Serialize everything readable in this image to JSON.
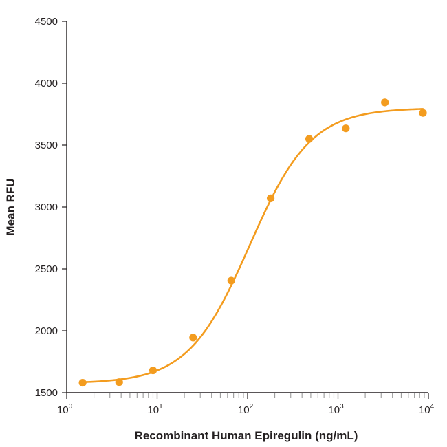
{
  "chart_data": {
    "type": "scatter",
    "xlabel": "Recombinant Human Epiregulin (ng/mL)",
    "ylabel": "Mean RFU",
    "xscale": "log",
    "xlim": [
      1,
      10000
    ],
    "ylim": [
      1500,
      4500
    ],
    "yticks": [
      "1500",
      "2000",
      "2500",
      "3000",
      "3500",
      "4000",
      "4500"
    ],
    "xticks": [
      {
        "base": "10",
        "exp": "0"
      },
      {
        "base": "10",
        "exp": "1"
      },
      {
        "base": "10",
        "exp": "2"
      },
      {
        "base": "10",
        "exp": "3"
      },
      {
        "base": "10",
        "exp": "4"
      }
    ],
    "color": "#f39c1f",
    "grid": false,
    "legend": "none",
    "fit": "four-parameter logistic curve",
    "points": [
      {
        "x": 1.5,
        "y": 1580
      },
      {
        "x": 3.8,
        "y": 1585
      },
      {
        "x": 9.0,
        "y": 1680
      },
      {
        "x": 25,
        "y": 1945
      },
      {
        "x": 66,
        "y": 2405
      },
      {
        "x": 180,
        "y": 3070
      },
      {
        "x": 480,
        "y": 3550
      },
      {
        "x": 1220,
        "y": 3635
      },
      {
        "x": 3300,
        "y": 3845
      },
      {
        "x": 8700,
        "y": 3760
      }
    ]
  }
}
